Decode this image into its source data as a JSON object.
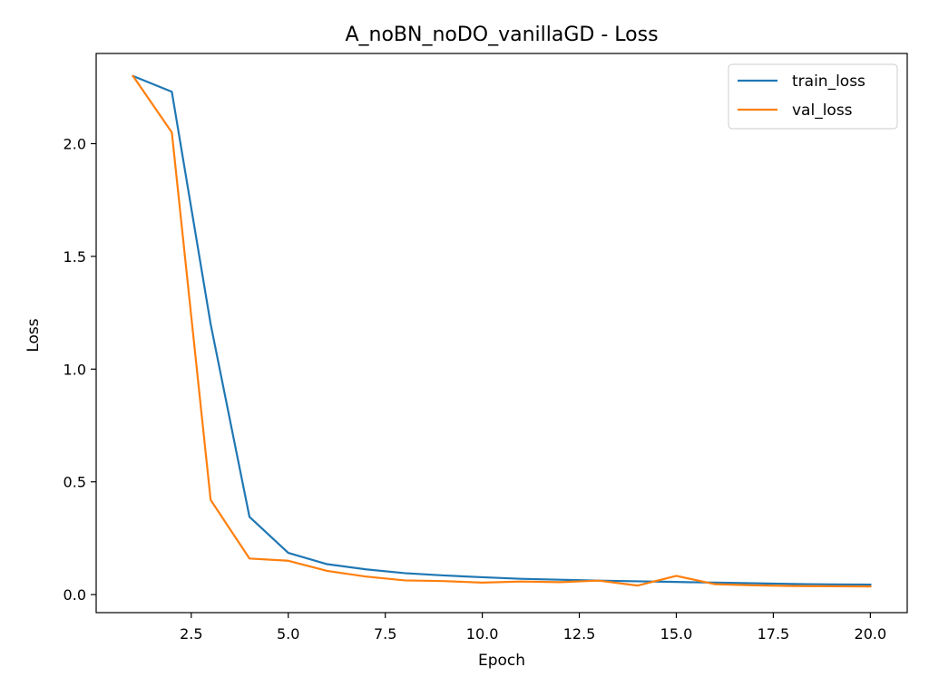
{
  "chart_data": {
    "type": "line",
    "title": "A_noBN_noDO_vanillaGD - Loss",
    "xlabel": "Epoch",
    "ylabel": "Loss",
    "xlim": [
      0.05,
      20.95
    ],
    "ylim": [
      -0.08,
      2.4
    ],
    "xticks": [
      2.5,
      5.0,
      7.5,
      10.0,
      12.5,
      15.0,
      17.5,
      20.0
    ],
    "xtick_labels": [
      "2.5",
      "5.0",
      "7.5",
      "10.0",
      "12.5",
      "15.0",
      "17.5",
      "20.0"
    ],
    "yticks": [
      0.0,
      0.5,
      1.0,
      1.5,
      2.0
    ],
    "ytick_labels": [
      "0.0",
      "0.5",
      "1.0",
      "1.5",
      "2.0"
    ],
    "grid": false,
    "legend_position": "top-right",
    "x": [
      1,
      2,
      3,
      4,
      5,
      6,
      7,
      8,
      9,
      10,
      11,
      12,
      13,
      14,
      15,
      16,
      17,
      18,
      19,
      20
    ],
    "series": [
      {
        "name": "train_loss",
        "color": "#1f77b4",
        "values": [
          2.3,
          2.23,
          1.2,
          0.345,
          0.185,
          0.135,
          0.112,
          0.095,
          0.085,
          0.077,
          0.07,
          0.066,
          0.062,
          0.059,
          0.056,
          0.053,
          0.05,
          0.047,
          0.045,
          0.044
        ]
      },
      {
        "name": "val_loss",
        "color": "#ff7f0e",
        "values": [
          2.3,
          2.05,
          0.42,
          0.16,
          0.15,
          0.105,
          0.08,
          0.063,
          0.06,
          0.053,
          0.058,
          0.055,
          0.062,
          0.04,
          0.083,
          0.046,
          0.041,
          0.038,
          0.037,
          0.036
        ]
      }
    ]
  }
}
